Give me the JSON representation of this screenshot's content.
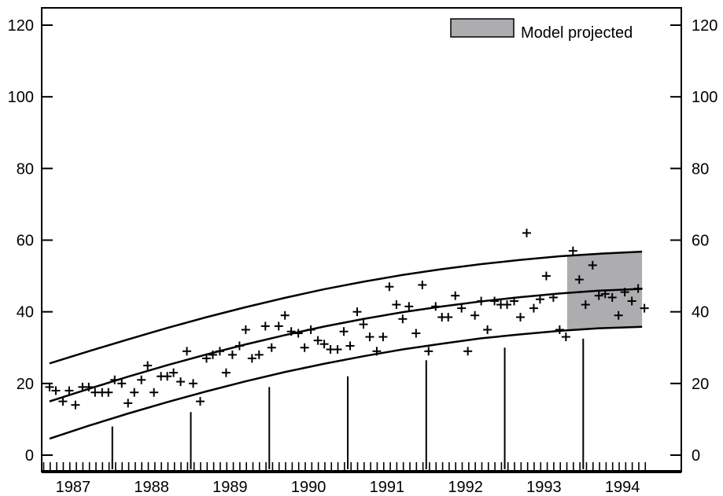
{
  "chart_data": {
    "type": "scatter",
    "title": "",
    "xlabel": "",
    "ylabel": "",
    "xlim": [
      1986.6,
      1994.75
    ],
    "ylim": [
      0,
      120
    ],
    "yticks": [
      0,
      20,
      40,
      60,
      80,
      100,
      120
    ],
    "ytick_labels": [
      "0",
      "20",
      "40",
      "60",
      "80",
      "100",
      "120"
    ],
    "xtick_labels": [
      "1987",
      "1988",
      "1989",
      "1990",
      "1991",
      "1992",
      "1993",
      "1994"
    ],
    "xtick_label_positions": [
      1987.0,
      1988.0,
      1989.0,
      1990.0,
      1991.0,
      1992.0,
      1993.0,
      1994.0
    ],
    "grid": false,
    "legend": {
      "placement": "top-right",
      "label": "Model projected"
    },
    "colors": {
      "shade": "#adadb0",
      "ink": "#000000"
    },
    "projection_start_x": 1993.3,
    "curves": {
      "x": [
        1986.7,
        1987.2,
        1987.7,
        1988.2,
        1988.7,
        1989.2,
        1989.7,
        1990.2,
        1990.7,
        1991.2,
        1991.7,
        1992.2,
        1992.7,
        1993.2,
        1993.7,
        1994.25
      ],
      "upper": [
        25.6,
        29.0,
        32.3,
        35.5,
        38.5,
        41.3,
        43.9,
        46.3,
        48.4,
        50.3,
        51.9,
        53.3,
        54.5,
        55.5,
        56.2,
        56.8
      ],
      "middle": [
        15.0,
        18.5,
        21.9,
        25.1,
        28.1,
        30.9,
        33.5,
        35.9,
        38.0,
        39.9,
        41.5,
        42.9,
        44.1,
        45.1,
        45.9,
        46.4
      ],
      "lower": [
        4.6,
        8.2,
        11.6,
        14.8,
        17.8,
        20.6,
        23.2,
        25.5,
        27.6,
        29.5,
        31.1,
        32.6,
        33.7,
        34.7,
        35.4,
        35.8
      ]
    },
    "vertical_bars": {
      "x": [
        1987.5,
        1988.5,
        1989.5,
        1990.5,
        1991.5,
        1992.5,
        1993.5
      ],
      "values": [
        8,
        12,
        19,
        22,
        26.5,
        30,
        32.5
      ]
    },
    "points": {
      "x": [
        1986.7,
        1986.78,
        1986.87,
        1986.95,
        1987.03,
        1987.12,
        1987.2,
        1987.28,
        1987.37,
        1987.45,
        1987.53,
        1987.62,
        1987.7,
        1987.78,
        1987.87,
        1987.95,
        1988.03,
        1988.12,
        1988.2,
        1988.28,
        1988.37,
        1988.45,
        1988.53,
        1988.62,
        1988.7,
        1988.78,
        1988.87,
        1988.95,
        1989.03,
        1989.12,
        1989.2,
        1989.28,
        1989.37,
        1989.45,
        1989.53,
        1989.62,
        1989.7,
        1989.78,
        1989.87,
        1989.95,
        1990.03,
        1990.12,
        1990.2,
        1990.28,
        1990.37,
        1990.45,
        1990.53,
        1990.62,
        1990.7,
        1990.78,
        1990.87,
        1990.95,
        1991.03,
        1991.12,
        1991.2,
        1991.28,
        1991.37,
        1991.45,
        1991.53,
        1991.62,
        1991.7,
        1991.78,
        1991.87,
        1991.95,
        1992.03,
        1992.12,
        1992.2,
        1992.28,
        1992.37,
        1992.45,
        1992.53,
        1992.62,
        1992.7,
        1992.78,
        1992.87,
        1992.95,
        1993.03,
        1993.12,
        1993.2,
        1993.28,
        1993.37,
        1993.45,
        1993.53,
        1993.62,
        1993.7,
        1993.78,
        1993.87,
        1993.95,
        1994.03,
        1994.12,
        1994.2,
        1994.28
      ],
      "y": [
        19,
        18,
        15,
        18,
        14,
        19,
        19,
        17.5,
        17.5,
        17.5,
        21,
        20,
        14.5,
        17.5,
        21,
        25,
        17.5,
        22,
        22,
        23,
        20.5,
        29,
        20,
        15,
        27,
        28,
        29,
        23,
        28,
        30.5,
        35,
        27,
        28,
        36,
        30,
        36,
        39,
        34.5,
        34,
        30,
        35,
        32,
        31,
        29.5,
        29.5,
        34.5,
        30.5,
        40,
        36.5,
        33,
        29,
        33,
        47,
        42,
        38,
        41.5,
        34,
        47.5,
        29,
        41.5,
        38.5,
        38.5,
        44.5,
        41,
        29,
        39,
        43,
        35,
        43,
        42,
        42,
        43,
        38.5,
        62,
        41,
        43.5,
        50,
        44,
        35,
        33,
        57,
        49,
        42,
        53,
        44.5,
        45,
        44,
        39,
        45.5,
        43,
        46.5,
        41
      ]
    }
  }
}
